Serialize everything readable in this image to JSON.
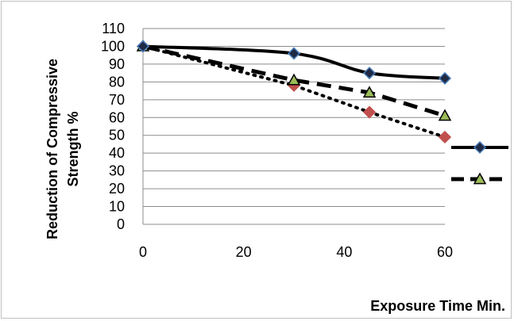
{
  "chart_data": {
    "type": "line",
    "xlabel": "Exposure Time Min.",
    "ylabel_lines": [
      "Reduction of Compressive",
      "Strength %"
    ],
    "x_ticks": [
      0,
      20,
      40,
      60
    ],
    "y_ticks": [
      0,
      10,
      20,
      30,
      40,
      50,
      60,
      70,
      80,
      90,
      100,
      110
    ],
    "xlim": [
      0,
      60
    ],
    "ylim": [
      0,
      110
    ],
    "grid": "horizontal",
    "legend_position": "right",
    "series": [
      {
        "x": [
          0,
          30,
          45,
          60
        ],
        "values": [
          100,
          96,
          85,
          82
        ],
        "line": "solid",
        "smooth": true,
        "marker": "diamond",
        "color": "#000000",
        "marker_fill": "#1f2a44",
        "marker_stroke": "#4a7ebb",
        "in_legend": true
      },
      {
        "x": [
          0,
          30,
          45,
          60
        ],
        "values": [
          100,
          81,
          74,
          61
        ],
        "line": "dashed",
        "smooth": false,
        "marker": "triangle",
        "color": "#000000",
        "marker_fill": "#9bbb59",
        "marker_stroke": "#000000",
        "in_legend": true
      },
      {
        "x": [
          0,
          30,
          45,
          60
        ],
        "values": [
          100,
          78,
          63,
          49
        ],
        "line": "dotted",
        "smooth": false,
        "marker": "diamond",
        "color": "#000000",
        "marker_fill": "#c0504d",
        "marker_stroke": "#c0504d",
        "in_legend": false
      }
    ]
  }
}
